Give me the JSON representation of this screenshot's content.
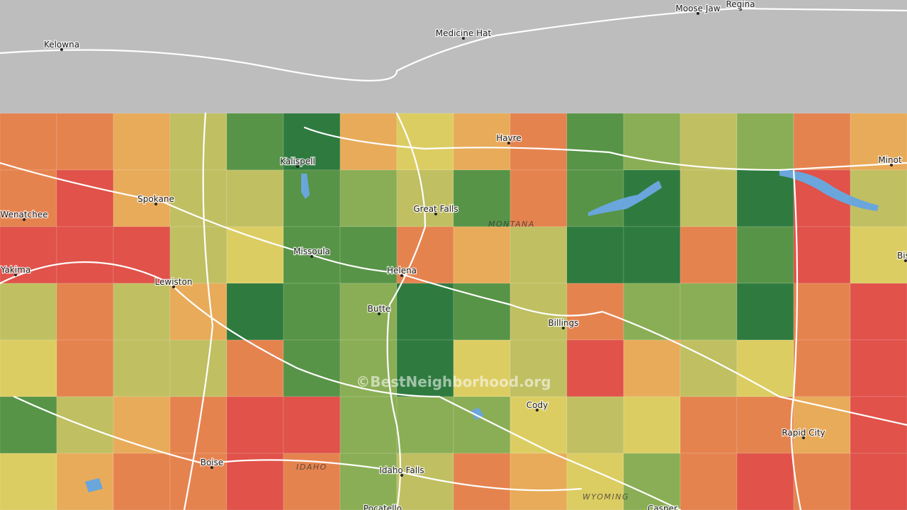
{
  "map": {
    "cities": [
      "Moose Jaw",
      "Regina",
      "Kelowna",
      "Medicine Hat",
      "Havre",
      "Kalispell",
      "Minot",
      "Wenatchee",
      "Spokane",
      "Great Falls",
      "Missoula",
      "Yakima",
      "Helena",
      "Lewiston",
      "Butte",
      "Billings",
      "Bis",
      "Cody",
      "Rapid City",
      "Boise",
      "Idaho Falls",
      "Pocatello",
      "Casper"
    ],
    "states": [
      "MONTANA",
      "IDAHO",
      "WYOMING"
    ],
    "watermark": "©BestNeighborhood.org"
  }
}
